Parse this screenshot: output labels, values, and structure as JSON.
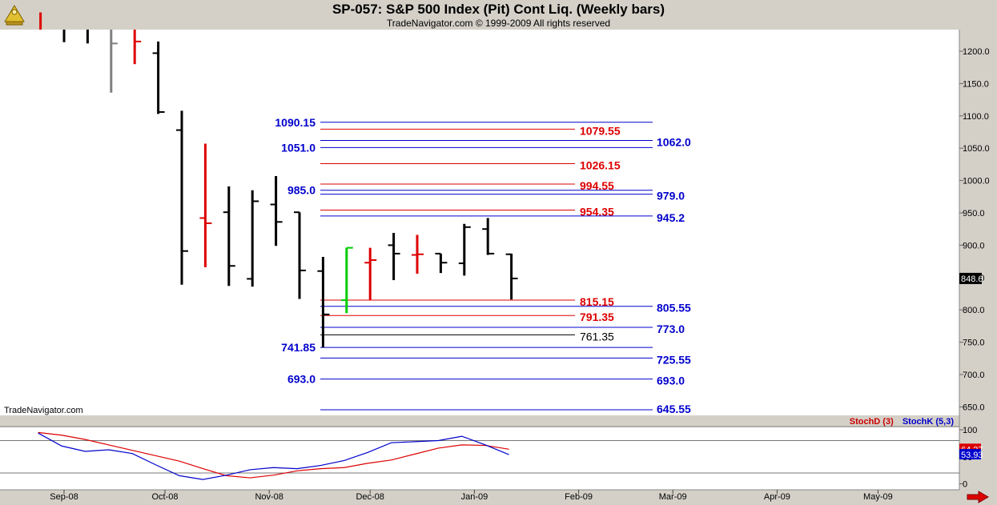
{
  "header": {
    "title": "SP-057:  S&P 500 Index (Pit) Cont Liq.  (Weekly bars)",
    "copyright": "TradeNavigator.com © 1999-2009 All rights reserved"
  },
  "watermark": "TradeNavigator.com",
  "colors": {
    "up": "#00cc00",
    "down": "#dd0000",
    "neutral": "#000000",
    "blue": "#0000cc",
    "red": "#dd0000",
    "background": "#ffffff",
    "frame": "#d4d0c8"
  },
  "chart_data": [
    {
      "type": "ohlc",
      "title": "SP-057:  S&P 500 Index (Pit) Cont Liq.  (Weekly bars)",
      "ylim": [
        640,
        1225
      ],
      "y_ticks": [
        "1200.0",
        "1150.0",
        "1100.0",
        "1050.0",
        "1000.0",
        "950.0",
        "900.0",
        "850.0",
        "800.0",
        "750.0",
        "700.0",
        "650.0"
      ],
      "x_ticks": [
        "Sep-08",
        "Oct-08",
        "Nov-08",
        "Dec-08",
        "Jan-09",
        "Feb-09",
        "Mar-09",
        "Apr-09",
        "May-09"
      ],
      "last_price_label": "848.6",
      "bars": [
        {
          "week": "2008-08-25",
          "open": 1285,
          "high": 1292,
          "low": 1260,
          "close": 1265,
          "color": "red"
        },
        {
          "week": "2008-09-01",
          "open": 1270,
          "high": 1280,
          "low": 1214,
          "close": 1240,
          "color": "black"
        },
        {
          "week": "2008-09-08",
          "open": 1242,
          "high": 1268,
          "low": 1212,
          "close": 1250,
          "color": "black"
        },
        {
          "week": "2008-09-15",
          "open": 1240,
          "high": 1260,
          "low": 1136,
          "close": 1212,
          "color": "gray"
        },
        {
          "week": "2008-09-22",
          "open": 1250,
          "high": 1270,
          "low": 1180,
          "close": 1215,
          "color": "red"
        },
        {
          "week": "2008-09-29",
          "open": 1197,
          "high": 1215,
          "low": 1103,
          "close": 1106,
          "color": "black"
        },
        {
          "week": "2008-10-06",
          "open": 1078,
          "high": 1108,
          "low": 839,
          "close": 891,
          "color": "black"
        },
        {
          "week": "2008-10-13",
          "open": 942,
          "high": 1057,
          "low": 866,
          "close": 934,
          "color": "red"
        },
        {
          "week": "2008-10-20",
          "open": 951,
          "high": 991,
          "low": 837,
          "close": 868,
          "color": "black"
        },
        {
          "week": "2008-10-27",
          "open": 848,
          "high": 985,
          "low": 836,
          "close": 968,
          "color": "black"
        },
        {
          "week": "2008-11-03",
          "open": 963,
          "high": 1007,
          "low": 899,
          "close": 936,
          "color": "black"
        },
        {
          "week": "2008-11-10",
          "open": 951,
          "high": 951,
          "low": 817,
          "close": 861,
          "color": "black"
        },
        {
          "week": "2008-11-17",
          "open": 860,
          "high": 882,
          "low": 741.85,
          "close": 793,
          "color": "black"
        },
        {
          "week": "2008-11-24",
          "open": 815,
          "high": 896,
          "low": 795,
          "close": 896,
          "color": "green"
        },
        {
          "week": "2008-12-01",
          "open": 873,
          "high": 896,
          "low": 815,
          "close": 877,
          "color": "red"
        },
        {
          "week": "2008-12-08",
          "open": 900,
          "high": 919,
          "low": 846,
          "close": 887,
          "color": "black"
        },
        {
          "week": "2008-12-15",
          "open": 885,
          "high": 916,
          "low": 856,
          "close": 886,
          "color": "red"
        },
        {
          "week": "2008-12-22",
          "open": 887,
          "high": 887,
          "low": 857,
          "close": 873,
          "color": "black"
        },
        {
          "week": "2008-12-29",
          "open": 872,
          "high": 933,
          "low": 853,
          "close": 928,
          "color": "black"
        },
        {
          "week": "2009-01-05",
          "open": 925,
          "high": 942,
          "low": 885,
          "close": 887,
          "color": "black"
        },
        {
          "week": "2009-01-12",
          "open": 886,
          "high": 887,
          "low": 816,
          "close": 848.6,
          "color": "black"
        }
      ],
      "levels": [
        {
          "value": 1090.15,
          "label": "1090.15",
          "color": "blue",
          "label_side": "left",
          "line": "long"
        },
        {
          "value": 1079.55,
          "label": "1079.55",
          "color": "red",
          "label_side": "right",
          "line": "short"
        },
        {
          "value": 1062.0,
          "label": "1062.0",
          "color": "blue",
          "label_side": "right",
          "line": "long"
        },
        {
          "value": 1051.0,
          "label": "1051.0",
          "color": "blue",
          "label_side": "left",
          "line": "long"
        },
        {
          "value": 1026.15,
          "label": "1026.15",
          "color": "red",
          "label_side": "right",
          "line": "short"
        },
        {
          "value": 994.55,
          "label": "994.55",
          "color": "red",
          "label_side": "right",
          "line": "short"
        },
        {
          "value": 985.0,
          "label": "985.0",
          "color": "blue",
          "label_side": "left",
          "line": "long"
        },
        {
          "value": 979.0,
          "label": "979.0",
          "color": "blue",
          "label_side": "right",
          "line": "long"
        },
        {
          "value": 954.35,
          "label": "954.35",
          "color": "red",
          "label_side": "right",
          "line": "short"
        },
        {
          "value": 945.2,
          "label": "945.2",
          "color": "blue",
          "label_side": "right",
          "line": "long"
        },
        {
          "value": 815.15,
          "label": "815.15",
          "color": "red",
          "label_side": "right",
          "line": "short"
        },
        {
          "value": 805.55,
          "label": "805.55",
          "color": "blue",
          "label_side": "right",
          "line": "long"
        },
        {
          "value": 791.35,
          "label": "791.35",
          "color": "red",
          "label_side": "right",
          "line": "short"
        },
        {
          "value": 773.0,
          "label": "773.0",
          "color": "blue",
          "label_side": "right",
          "line": "long"
        },
        {
          "value": 761.35,
          "label": "761.35",
          "color": "black",
          "label_side": "right",
          "line": "short"
        },
        {
          "value": 741.85,
          "label": "741.85",
          "color": "blue",
          "label_side": "left",
          "line": "long"
        },
        {
          "value": 725.55,
          "label": "725.55",
          "color": "blue",
          "label_side": "right",
          "line": "long"
        },
        {
          "value": 693.0,
          "label": "693.0",
          "color": "blue",
          "label_side": "both",
          "line": "long"
        },
        {
          "value": 645.55,
          "label": "645.55",
          "color": "blue",
          "label_side": "right",
          "line": "long"
        }
      ]
    },
    {
      "type": "line",
      "title": "Stochastic",
      "ylim": [
        -5,
        115
      ],
      "y_ticks": [
        "100",
        "50",
        "0"
      ],
      "reference_lines": [
        80,
        20
      ],
      "last_values": [
        "64.27",
        "53.93"
      ],
      "series": [
        {
          "name": "StochD (3)",
          "color": "red",
          "values": [
            95,
            90,
            82,
            72,
            62,
            52,
            42,
            28,
            15,
            11,
            16,
            24,
            28,
            30,
            38,
            44,
            55,
            66,
            72,
            71,
            64
          ]
        },
        {
          "name": "StochK (5,3)",
          "color": "blue",
          "values": [
            94,
            70,
            60,
            63,
            56,
            35,
            15,
            8,
            16,
            26,
            30,
            28,
            34,
            43,
            58,
            76,
            78,
            80,
            88,
            72,
            54
          ]
        }
      ]
    }
  ],
  "stoch_legend": {
    "d": "StochD (3)",
    "k": "StochK (5,3)"
  }
}
